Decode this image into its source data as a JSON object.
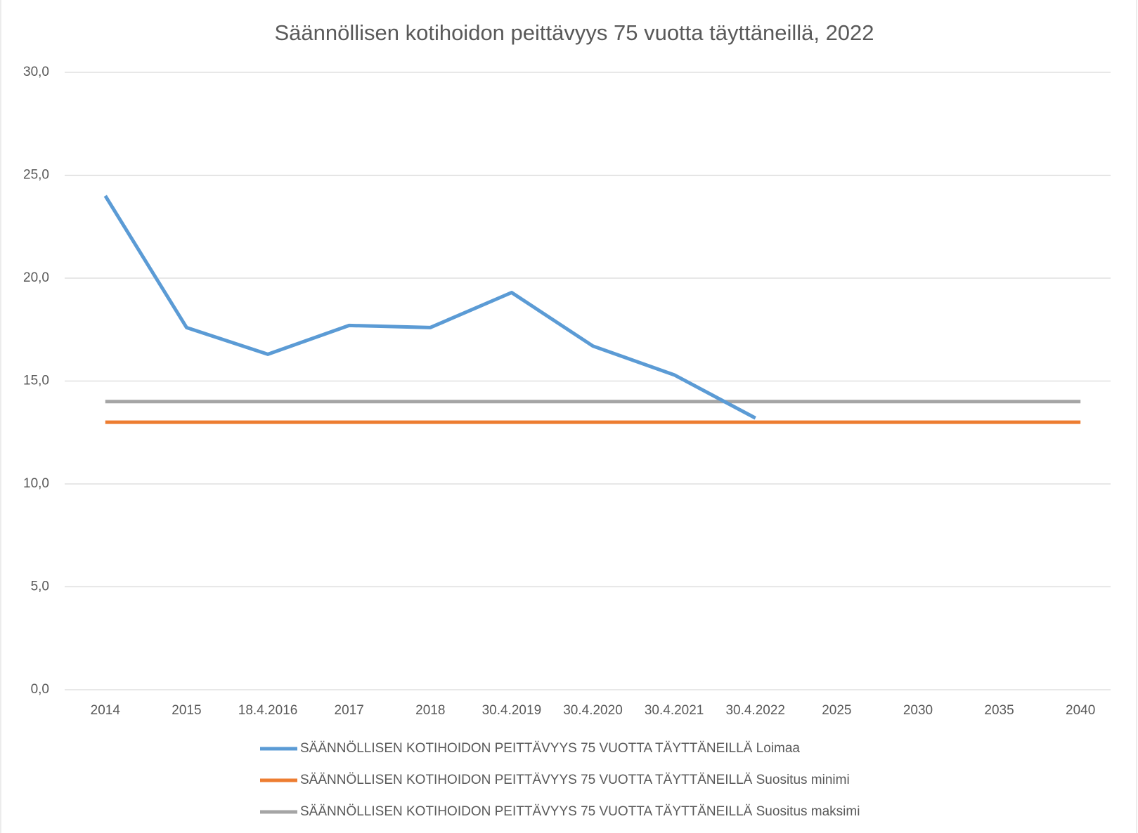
{
  "chart_data": {
    "type": "line",
    "title": "Säännöllisen kotihoidon peittävyys 75 vuotta täyttäneillä, 2022",
    "categories": [
      "2014",
      "2015",
      "18.4.2016",
      "2017",
      "2018",
      "30.4.2019",
      "30.4.2020",
      "30.4.2021",
      "30.4.2022",
      "2025",
      "2030",
      "2035",
      "2040"
    ],
    "series": [
      {
        "name": "SÄÄNNÖLLISEN KOTIHOIDON PEITTÄVYYS 75 VUOTTA TÄYTTÄNEILLÄ Loimaa",
        "color": "#5b9bd5",
        "values": [
          24.0,
          17.6,
          16.3,
          17.7,
          17.6,
          19.3,
          16.7,
          15.3,
          13.2,
          null,
          null,
          null,
          null
        ]
      },
      {
        "name": "SÄÄNNÖLLISEN KOTIHOIDON PEITTÄVYYS 75 VUOTTA TÄYTTÄNEILLÄ Suositus minimi",
        "color": "#ed7d31",
        "values": [
          13,
          13,
          13,
          13,
          13,
          13,
          13,
          13,
          13,
          13,
          13,
          13,
          13
        ]
      },
      {
        "name": "SÄÄNNÖLLISEN KOTIHOIDON PEITTÄVYYS 75 VUOTTA TÄYTTÄNEILLÄ Suositus maksimi",
        "color": "#a5a5a5",
        "values": [
          14,
          14,
          14,
          14,
          14,
          14,
          14,
          14,
          14,
          14,
          14,
          14,
          14
        ]
      }
    ],
    "ylim": [
      0,
      30
    ],
    "yticks": [
      {
        "value": 0,
        "label": "0,0"
      },
      {
        "value": 5,
        "label": "5,0"
      },
      {
        "value": 10,
        "label": "10,0"
      },
      {
        "value": 15,
        "label": "15,0"
      },
      {
        "value": 20,
        "label": "20,0"
      },
      {
        "value": 25,
        "label": "25,0"
      },
      {
        "value": 30,
        "label": "30,0"
      }
    ],
    "grid": true,
    "legend": "bottom"
  }
}
